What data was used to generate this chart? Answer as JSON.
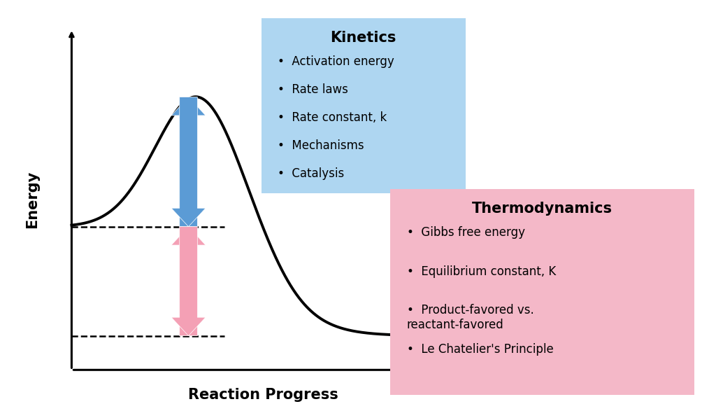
{
  "xlabel": "Reaction Progress",
  "ylabel": "Energy",
  "background_color": "#ffffff",
  "reactant_energy": 0.42,
  "product_energy": 0.1,
  "transition_energy": 0.8,
  "kinetics_box_color": "#aed6f1",
  "kinetics_title": "Kinetics",
  "kinetics_bullets": [
    "Activation energy",
    "Rate laws",
    "Rate constant, k",
    "Mechanisms",
    "Catalysis"
  ],
  "thermo_box_color": "#f4b8c8",
  "thermo_title": "Thermodynamics",
  "thermo_bullets": [
    "Gibbs free energy",
    "Equilibrium constant, K",
    "Product-favored vs.\nreactant-favored",
    "Le Chatelier's Principle"
  ],
  "blue_arrow_color": "#5b9bd5",
  "pink_arrow_color": "#f4a0b5"
}
